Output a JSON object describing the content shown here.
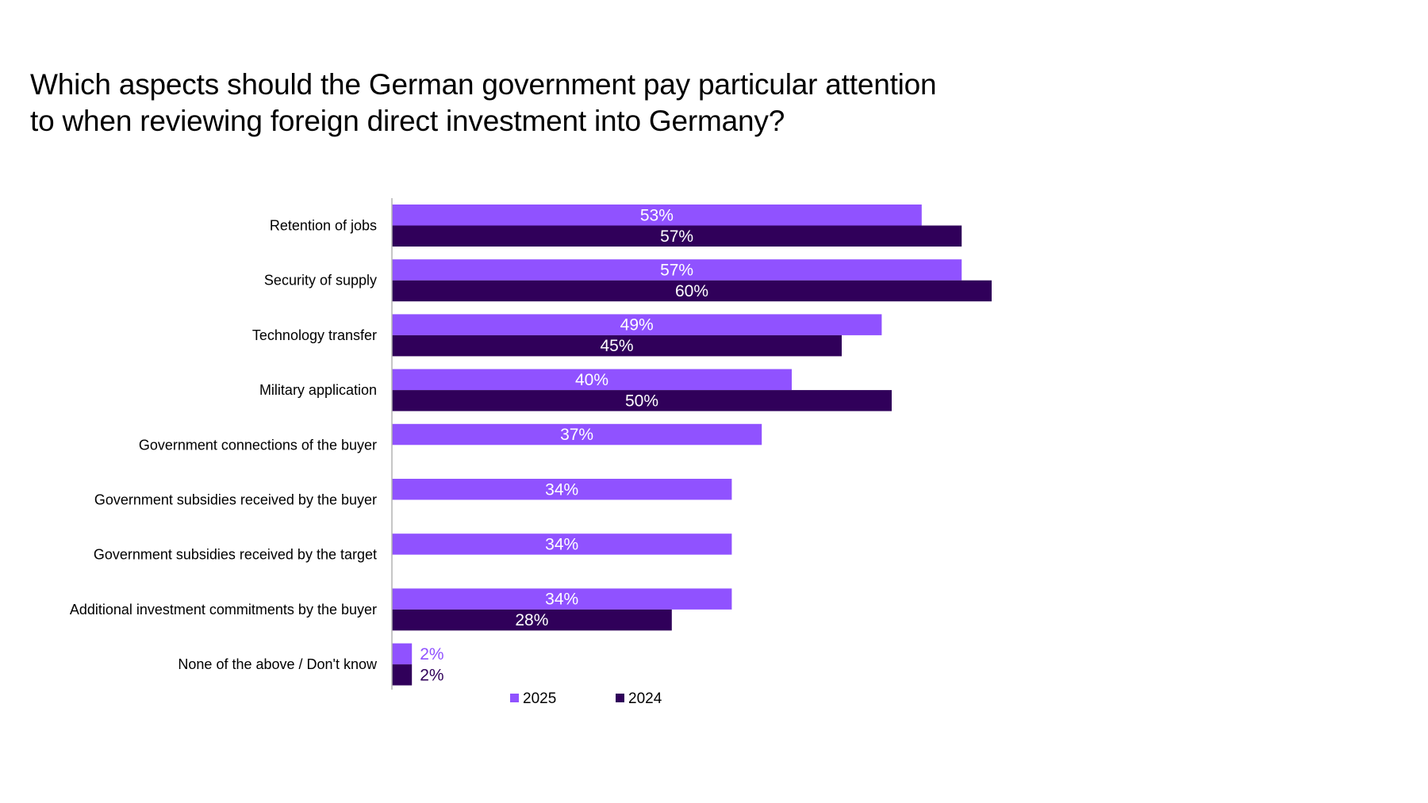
{
  "header": {
    "title_lines": [
      "Which aspects should the German government pay particular attention",
      "to when reviewing foreign direct investment into Germany?"
    ]
  },
  "chart_data": {
    "type": "bar",
    "orientation": "horizontal",
    "title": "Which aspects should the German government pay particular attention to when reviewing foreign direct investment into Germany?",
    "xlabel": "",
    "ylabel": "",
    "unit": "%",
    "xlim": [
      0,
      60
    ],
    "grid": false,
    "legend_position": "bottom",
    "categories": [
      "Retention of jobs",
      "Security of supply",
      "Technology transfer",
      "Military application",
      "Government connections of the buyer",
      "Government subsidies received by the buyer",
      "Government subsidies received by the target",
      "Additional investment commitments by the buyer",
      "None of the above / Don't know"
    ],
    "series": [
      {
        "name": "2025",
        "color": "#9052FF",
        "values": [
          53,
          57,
          49,
          40,
          37,
          34,
          34,
          34,
          2
        ],
        "labels": [
          "53%",
          "57%",
          "49%",
          "40%",
          "37%",
          "34%",
          "34%",
          "34%",
          "2%"
        ]
      },
      {
        "name": "2024",
        "color": "#30005A",
        "values": [
          57,
          60,
          45,
          50,
          null,
          null,
          null,
          28,
          2
        ],
        "labels": [
          "57%",
          "60%",
          "45%",
          "50%",
          null,
          null,
          null,
          "28%",
          "2%"
        ]
      }
    ]
  }
}
